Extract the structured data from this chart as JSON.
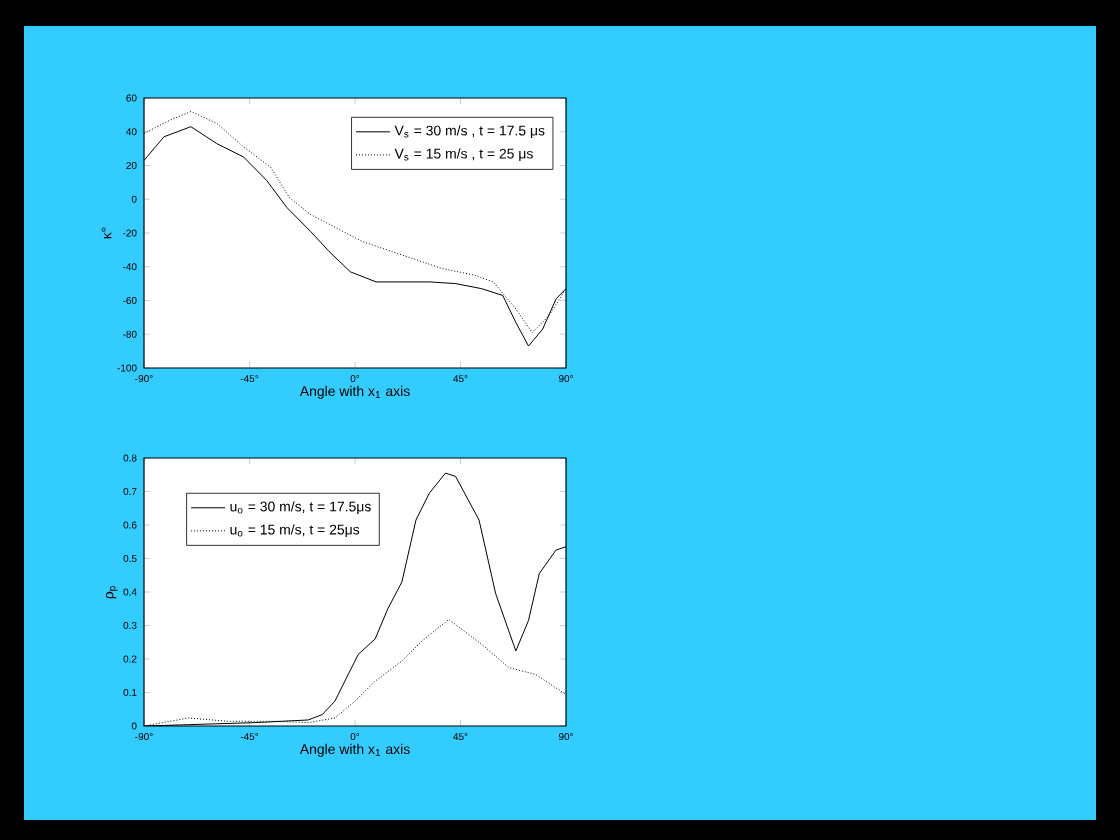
{
  "chart_data": [
    {
      "type": "line",
      "xlabel": "Angle with x$_{1}$ axis",
      "ylabel": "κ°",
      "xlim": [
        -90,
        90
      ],
      "xticks": [
        {
          "value": -90,
          "label": "-90°"
        },
        {
          "value": -45,
          "label": "-45°"
        },
        {
          "value": 0,
          "label": "0°"
        },
        {
          "value": 45,
          "label": "45°"
        },
        {
          "value": 90,
          "label": "90°"
        }
      ],
      "ylim": [
        -100,
        60
      ],
      "yticks": [
        -100,
        -80,
        -60,
        -40,
        -20,
        0,
        20,
        40,
        60
      ],
      "grid": false,
      "legend": "top right",
      "marker": "none",
      "series": [
        {
          "name": "V$_{s}$ = 30 m/s , t = 17.5 μs",
          "color": "#000000",
          "line_style": "solid",
          "x": [
            -90,
            -81.5,
            -70,
            -59,
            -47.5,
            -37.6,
            -29,
            -19,
            -11,
            -2,
            9,
            32,
            43,
            54,
            63,
            68.6,
            74,
            80,
            85.8,
            90
          ],
          "values": [
            23,
            37,
            43,
            33,
            25,
            11,
            -5,
            -19,
            -31,
            -43,
            -49,
            -49,
            -50,
            -53,
            -57,
            -73,
            -87,
            -77,
            -59,
            -53
          ]
        },
        {
          "name": "V$_{s}$ = 15 m/s , t = 25 μs",
          "color": "#000000",
          "line_style": "dotted",
          "x": [
            -90,
            -78.7,
            -70,
            -59,
            -47.5,
            -36,
            -28,
            -19,
            -8,
            3,
            20,
            37,
            51,
            59,
            68.6,
            75.6,
            82.7,
            90
          ],
          "values": [
            39,
            47,
            52,
            45,
            31,
            19,
            1,
            -9,
            -17,
            -25,
            -33,
            -41,
            -45,
            -49,
            -65,
            -79,
            -69,
            -53
          ]
        }
      ]
    },
    {
      "type": "line",
      "xlabel": "Angle with x$_{1}$ axis",
      "ylabel": "ρ$_{p}$",
      "xlim": [
        -90,
        90
      ],
      "xticks": [
        {
          "value": -90,
          "label": "-90°"
        },
        {
          "value": -45,
          "label": "-45°"
        },
        {
          "value": 0,
          "label": "0°"
        },
        {
          "value": 45,
          "label": "45°"
        },
        {
          "value": 90,
          "label": "90°"
        }
      ],
      "ylim": [
        0,
        0.8
      ],
      "yticks": [
        0,
        0.1,
        0.2,
        0.3,
        0.4,
        0.5,
        0.6,
        0.7,
        0.8
      ],
      "grid": false,
      "legend": "top left",
      "marker": "none",
      "series": [
        {
          "name": "u$_{o}$ = 30 m/s, t = 17.5μs",
          "color": "#000000",
          "line_style": "solid",
          "x": [
            -90,
            -71,
            -43,
            -20,
            -14,
            -8.6,
            -2.9,
            1.4,
            8.6,
            14,
            20,
            26,
            31.7,
            38.6,
            42.9,
            52.9,
            60,
            68.6,
            74,
            78.6,
            85.7,
            90
          ],
          "values": [
            0,
            0.004,
            0.01,
            0.018,
            0.034,
            0.074,
            0.154,
            0.214,
            0.26,
            0.35,
            0.43,
            0.615,
            0.695,
            0.755,
            0.745,
            0.615,
            0.395,
            0.224,
            0.315,
            0.455,
            0.525,
            0.535
          ]
        },
        {
          "name": "u$_{o}$ = 15 m/s, t = 25μs",
          "color": "#000000",
          "line_style": "dotted",
          "x": [
            -90,
            -71,
            -54,
            -34,
            -20,
            -8.6,
            0,
            8.6,
            20,
            28.6,
            40,
            54,
            65.7,
            77,
            90
          ],
          "values": [
            0,
            0.024,
            0.014,
            0.014,
            0.01,
            0.024,
            0.074,
            0.134,
            0.194,
            0.254,
            0.318,
            0.244,
            0.174,
            0.154,
            0.094
          ]
        }
      ]
    }
  ]
}
